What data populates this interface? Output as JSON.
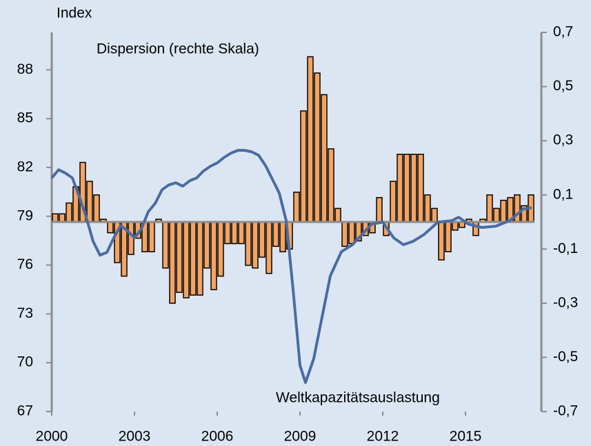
{
  "chart_data": {
    "type": "combo",
    "y_axis_label": "Index",
    "xlim": [
      2000,
      2017.5
    ],
    "xticks": [
      2000,
      2003,
      2006,
      2009,
      2012,
      2015
    ],
    "ylim": [
      67,
      90.3
    ],
    "yticks": [
      67,
      70,
      73,
      76,
      79,
      82,
      85,
      88
    ],
    "y2lim": [
      -0.7,
      0.7
    ],
    "y2ticks": [
      {
        "value": -0.7,
        "label": "-0,7"
      },
      {
        "value": -0.5,
        "label": "-0,5"
      },
      {
        "value": -0.3,
        "label": "-0,3"
      },
      {
        "value": -0.1,
        "label": "-0,1"
      },
      {
        "value": 0.1,
        "label": "0,1"
      },
      {
        "value": 0.3,
        "label": "0,3"
      },
      {
        "value": 0.5,
        "label": "0,5"
      },
      {
        "value": 0.7,
        "label": "0,7"
      }
    ],
    "series": [
      {
        "name": "Dispersion (rechte Skala)",
        "type": "bar",
        "axis": "y2",
        "color": "#f4a462",
        "x": [
          2000,
          2000.25,
          2000.5,
          2000.75,
          2001,
          2001.25,
          2001.5,
          2001.75,
          2002,
          2002.25,
          2002.5,
          2002.75,
          2003,
          2003.25,
          2003.5,
          2003.75,
          2004,
          2004.25,
          2004.5,
          2004.75,
          2005,
          2005.25,
          2005.5,
          2005.75,
          2006,
          2006.25,
          2006.5,
          2006.75,
          2007,
          2007.25,
          2007.5,
          2007.75,
          2008,
          2008.25,
          2008.5,
          2008.75,
          2009,
          2009.25,
          2009.5,
          2009.75,
          2010,
          2010.25,
          2010.5,
          2010.75,
          2011,
          2011.25,
          2011.5,
          2011.75,
          2012,
          2012.25,
          2012.5,
          2012.75,
          2013,
          2013.25,
          2013.5,
          2013.75,
          2014,
          2014.25,
          2014.5,
          2014.75,
          2015,
          2015.25,
          2015.5,
          2015.75,
          2016,
          2016.25,
          2016.5,
          2016.75,
          2017,
          2017.25
        ],
        "values": [
          0.03,
          0.03,
          0.07,
          0.13,
          0.22,
          0.15,
          0.1,
          0.01,
          -0.04,
          -0.15,
          -0.2,
          -0.12,
          -0.06,
          -0.11,
          -0.11,
          0.01,
          -0.17,
          -0.3,
          -0.26,
          -0.28,
          -0.27,
          -0.27,
          -0.17,
          -0.25,
          -0.2,
          -0.08,
          -0.08,
          -0.08,
          -0.16,
          -0.17,
          -0.13,
          -0.19,
          -0.09,
          -0.11,
          -0.1,
          0.11,
          0.41,
          0.61,
          0.55,
          0.47,
          0.27,
          0.05,
          -0.09,
          -0.08,
          -0.07,
          -0.05,
          -0.04,
          0.09,
          -0.05,
          0.15,
          0.25,
          0.25,
          0.25,
          0.25,
          0.1,
          0.05,
          -0.14,
          -0.11,
          -0.03,
          -0.02,
          0.01,
          -0.05,
          0.01,
          0.1,
          0.05,
          0.08,
          0.09,
          0.1,
          0.06,
          0.1
        ]
      },
      {
        "name": "Weltkapazitätsauslastung",
        "type": "line",
        "axis": "y",
        "color": "#4a6ca3",
        "x": [
          2000,
          2000.25,
          2000.5,
          2000.75,
          2001,
          2001.25,
          2001.5,
          2001.75,
          2002,
          2002.25,
          2002.5,
          2002.75,
          2003,
          2003.25,
          2003.5,
          2003.75,
          2004,
          2004.25,
          2004.5,
          2004.75,
          2005,
          2005.25,
          2005.5,
          2005.75,
          2006,
          2006.25,
          2006.5,
          2006.75,
          2007,
          2007.25,
          2007.5,
          2007.75,
          2008,
          2008.25,
          2008.5,
          2008.75,
          2009,
          2009.2,
          2009.5,
          2009.75,
          2010.1,
          2010.5,
          2010.9,
          2011.25,
          2011.6,
          2012,
          2012.4,
          2012.75,
          2013.1,
          2013.5,
          2014,
          2014.5,
          2014.75,
          2015.1,
          2015.6,
          2016.1,
          2016.6,
          2017.1,
          2017.4
        ],
        "values": [
          81.35,
          81.86,
          81.65,
          81.35,
          80.21,
          78.94,
          77.46,
          76.61,
          76.78,
          77.67,
          78.43,
          78.1,
          77.67,
          78.22,
          79.28,
          79.79,
          80.63,
          80.93,
          81.06,
          80.85,
          81.18,
          81.35,
          81.78,
          82.07,
          82.28,
          82.62,
          82.88,
          83.05,
          83.05,
          82.96,
          82.75,
          82.12,
          81.27,
          80.42,
          78.73,
          74.5,
          69.84,
          68.78,
          70.26,
          72.38,
          75.34,
          76.82,
          77.25,
          77.88,
          78.52,
          78.64,
          77.67,
          77.25,
          77.46,
          77.88,
          78.64,
          78.73,
          78.94,
          78.52,
          78.31,
          78.39,
          78.73,
          79.45,
          79.53
        ]
      }
    ]
  }
}
